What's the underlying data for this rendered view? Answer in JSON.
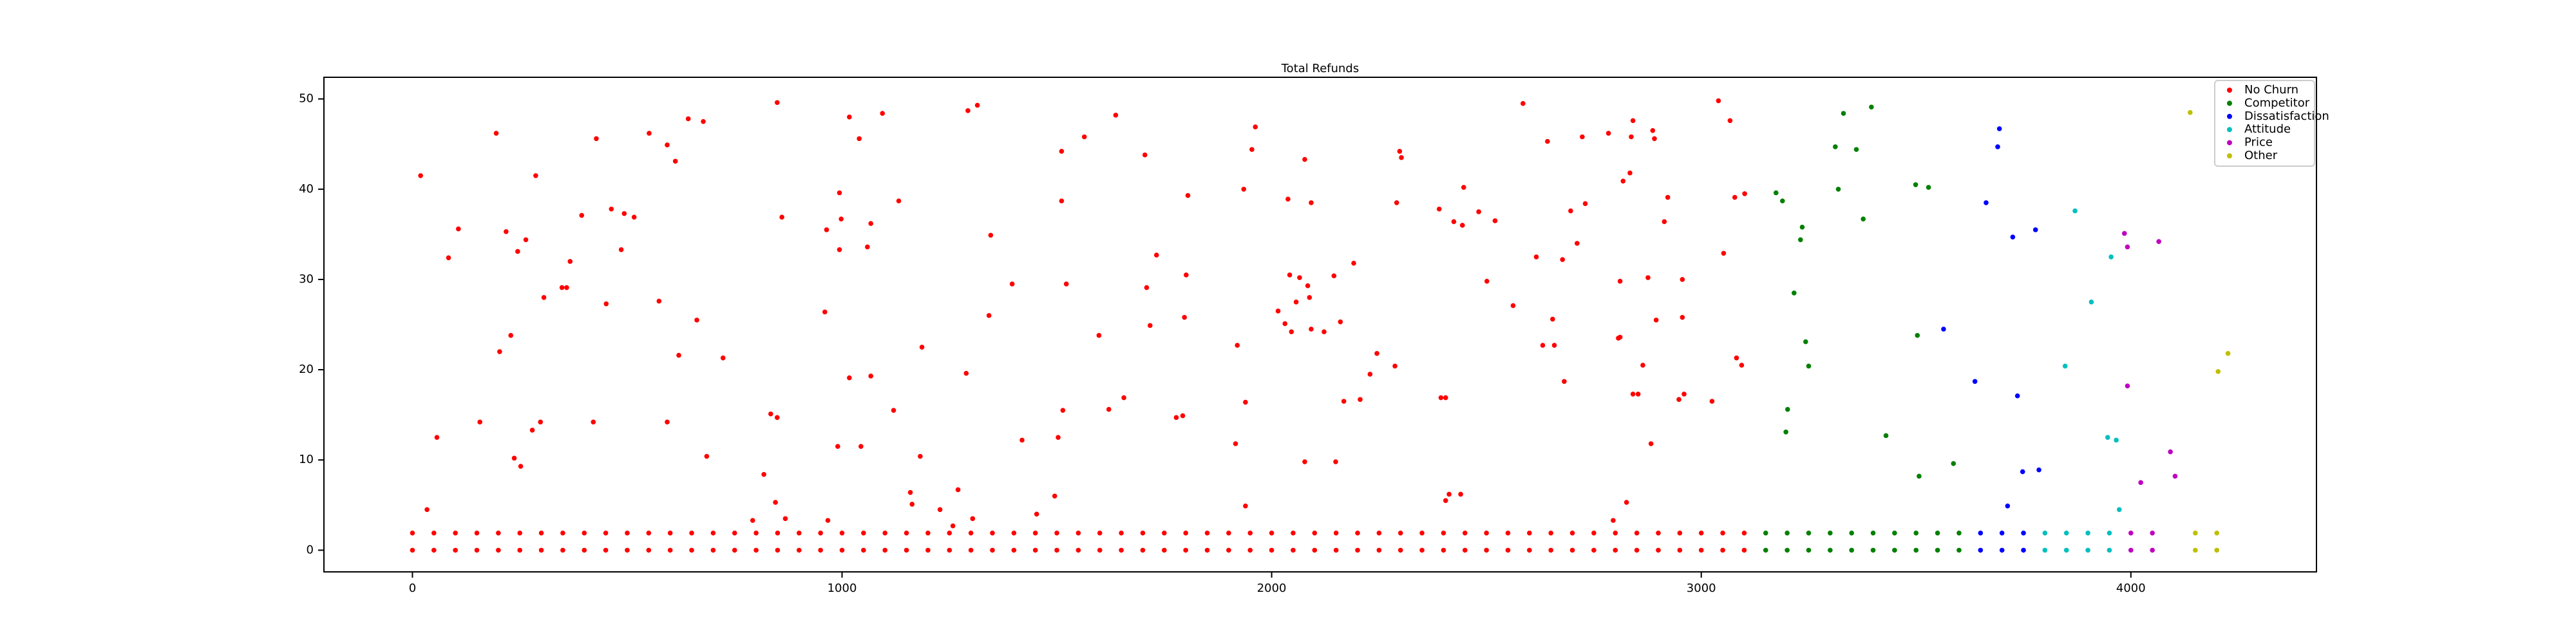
{
  "chart_data": {
    "type": "scatter",
    "title": "Total Refunds",
    "xlim": [
      -206,
      4432
    ],
    "ylim": [
      -2.4,
      52.4
    ],
    "xticks": [
      0,
      1000,
      2000,
      3000,
      4000
    ],
    "yticks": [
      0,
      10,
      20,
      30,
      40,
      50
    ],
    "grid": false,
    "legend": "upper right",
    "series": [
      {
        "name": "No Churn",
        "color": "#ff0000",
        "x": [
          19,
          34,
          57,
          84,
          107,
          157,
          195,
          203,
          218,
          229,
          237,
          245,
          252,
          264,
          279,
          287,
          298,
          306,
          348,
          359,
          367,
          394,
          421,
          428,
          451,
          463,
          486,
          493,
          516,
          551,
          574,
          593,
          593,
          612,
          620,
          642,
          662,
          677,
          685,
          723,
          792,
          818,
          834,
          845,
          849,
          849,
          860,
          868,
          960,
          964,
          967,
          990,
          994,
          994,
          998,
          1017,
          1017,
          1040,
          1044,
          1059,
          1067,
          1067,
          1094,
          1120,
          1132,
          1159,
          1163,
          1182,
          1186,
          1228,
          1258,
          1270,
          1289,
          1293,
          1304,
          1315,
          1342,
          1346,
          1396,
          1419,
          1453,
          1495,
          1503,
          1511,
          1511,
          1514,
          1522,
          1564,
          1598,
          1621,
          1637,
          1656,
          1705,
          1709,
          1717,
          1732,
          1778,
          1793,
          1797,
          1801,
          1805,
          1920,
          1916,
          1935,
          1939,
          1939,
          1954,
          1962,
          2015,
          2031,
          2038,
          2042,
          2046,
          2057,
          2065,
          2077,
          2077,
          2084,
          2088,
          2092,
          2092,
          2122,
          2145,
          2149,
          2160,
          2168,
          2191,
          2206,
          2229,
          2245,
          2287,
          2291,
          2298,
          2302,
          2390,
          2394,
          2405,
          2405,
          2413,
          2424,
          2440,
          2444,
          2447,
          2482,
          2501,
          2520,
          2562,
          2585,
          2616,
          2631,
          2642,
          2654,
          2658,
          2677,
          2681,
          2696,
          2711,
          2723,
          2730,
          2784,
          2795,
          2807,
          2811,
          2811,
          2818,
          2826,
          2834,
          2837,
          2841,
          2841,
          2853,
          2864,
          2876,
          2883,
          2887,
          2891,
          2895,
          2914,
          2922,
          2948,
          2956,
          2956,
          2960,
          3025,
          3040,
          3052,
          3067,
          3078,
          3082,
          3094,
          3101,
          0,
          50,
          100,
          150,
          200,
          250,
          300,
          350,
          400,
          450,
          500,
          550,
          600,
          650,
          700,
          750,
          800,
          850,
          900,
          950,
          1000,
          1050,
          1100,
          1150,
          1200,
          1250,
          1300,
          1350,
          1400,
          1450,
          1500,
          1550,
          1600,
          1650,
          1700,
          1750,
          1800,
          1850,
          1900,
          1950,
          2000,
          2050,
          2100,
          2150,
          2200,
          2250,
          2300,
          2350,
          2400,
          2450,
          2500,
          2550,
          2600,
          2650,
          2700,
          2750,
          2800,
          2850,
          2900,
          2950,
          3000,
          3050,
          3100,
          0,
          50,
          100,
          150,
          200,
          250,
          300,
          350,
          400,
          450,
          500,
          550,
          600,
          650,
          700,
          750,
          800,
          850,
          900,
          950,
          1000,
          1050,
          1100,
          1150,
          1200,
          1250,
          1300,
          1350,
          1400,
          1450,
          1500,
          1550,
          1600,
          1650,
          1700,
          1750,
          1800,
          1850,
          1900,
          1950,
          2000,
          2050,
          2100,
          2150,
          2200,
          2250,
          2300,
          2350,
          2400,
          2450,
          2500,
          2550,
          2600,
          2650,
          2700,
          2750,
          2800,
          2850,
          2900,
          2950,
          3000,
          3050,
          3100
        ],
        "values": [
          41.5,
          4.5,
          12.5,
          32.4,
          35.6,
          14.2,
          46.2,
          22,
          35.3,
          23.8,
          10.2,
          33.1,
          9.3,
          34.4,
          13.3,
          41.5,
          14.2,
          28,
          29.1,
          29.1,
          32,
          37.1,
          14.2,
          45.6,
          27.3,
          37.8,
          33.3,
          37.3,
          36.9,
          46.2,
          27.6,
          14.2,
          44.9,
          43.1,
          21.6,
          47.8,
          25.5,
          47.5,
          10.4,
          21.3,
          3.3,
          8.4,
          15.1,
          5.3,
          49.6,
          14.7,
          36.9,
          3.5,
          26.4,
          35.5,
          3.3,
          11.5,
          39.6,
          33.3,
          36.7,
          48,
          19.1,
          45.6,
          11.5,
          33.6,
          36.2,
          19.3,
          48.4,
          15.5,
          38.7,
          6.4,
          5.1,
          10.4,
          22.5,
          4.5,
          2.7,
          6.7,
          19.6,
          48.7,
          3.5,
          49.3,
          26,
          34.9,
          29.5,
          12.2,
          4,
          6,
          12.5,
          38.7,
          44.2,
          15.5,
          29.5,
          45.8,
          23.8,
          15.6,
          48.2,
          16.9,
          43.8,
          29.1,
          24.9,
          32.7,
          14.7,
          14.9,
          25.8,
          30.5,
          39.3,
          22.7,
          11.8,
          40,
          16.4,
          4.9,
          44.4,
          46.9,
          26.5,
          25.1,
          38.9,
          30.5,
          24.2,
          27.5,
          30.2,
          43.3,
          9.8,
          29.3,
          28,
          24.5,
          38.5,
          24.2,
          30.4,
          9.8,
          25.3,
          16.5,
          31.8,
          16.7,
          19.5,
          21.8,
          20.4,
          38.5,
          44.2,
          43.5,
          37.8,
          16.9,
          16.9,
          5.5,
          6.2,
          36.4,
          6.2,
          36,
          40.2,
          37.5,
          29.8,
          36.5,
          27.1,
          49.5,
          32.5,
          22.7,
          45.3,
          25.6,
          22.7,
          32.2,
          18.7,
          37.6,
          34,
          45.8,
          38.4,
          46.2,
          3.3,
          23.5,
          23.6,
          29.8,
          40.9,
          5.3,
          41.8,
          45.8,
          47.6,
          17.3,
          17.3,
          20.5,
          30.2,
          11.8,
          46.5,
          45.6,
          25.5,
          36.4,
          39.1,
          16.7,
          25.8,
          30,
          17.3,
          16.5,
          49.8,
          32.9,
          47.6,
          39.1,
          21.3,
          20.5,
          39.5,
          0,
          0,
          0,
          0,
          0,
          0,
          0,
          0,
          0,
          0,
          0,
          0,
          0,
          0,
          0,
          0,
          0,
          0,
          0,
          0,
          0,
          0,
          0,
          0,
          0,
          0,
          0,
          0,
          0,
          0,
          0,
          0,
          0,
          0,
          0,
          0,
          0,
          0,
          0,
          0,
          0,
          0,
          0,
          0,
          0,
          0,
          0,
          0,
          0,
          0,
          0,
          0,
          0,
          0,
          0,
          0,
          0,
          0,
          0,
          0,
          0,
          0,
          0,
          1.9,
          1.9,
          1.9,
          1.9,
          1.9,
          1.9,
          1.9,
          1.9,
          1.9,
          1.9,
          1.9,
          1.9,
          1.9,
          1.9,
          1.9,
          1.9,
          1.9,
          1.9,
          1.9,
          1.9,
          1.9,
          1.9,
          1.9,
          1.9,
          1.9,
          1.9,
          1.9,
          1.9,
          1.9,
          1.9,
          1.9,
          1.9,
          1.9,
          1.9,
          1.9,
          1.9,
          1.9,
          1.9,
          1.9,
          1.9,
          1.9,
          1.9,
          1.9,
          1.9,
          1.9,
          1.9,
          1.9,
          1.9,
          1.9,
          1.9,
          1.9,
          1.9,
          1.9,
          1.9,
          1.9,
          1.9,
          1.9,
          1.9,
          1.9,
          1.9,
          1.9,
          1.9,
          1.9
        ]
      },
      {
        "name": "Competitor",
        "color": "#008000",
        "x": [
          3174,
          3189,
          3201,
          3197,
          3216,
          3231,
          3235,
          3243,
          3250,
          3312,
          3319,
          3331,
          3361,
          3377,
          3396,
          3430,
          3499,
          3503,
          3507,
          3529,
          3587,
          3150,
          3200,
          3250,
          3300,
          3350,
          3400,
          3450,
          3500,
          3550,
          3600,
          3150,
          3200,
          3250,
          3300,
          3350,
          3400,
          3450,
          3500,
          3550,
          3600
        ],
        "values": [
          39.6,
          38.7,
          15.6,
          13.1,
          28.5,
          34.4,
          35.8,
          23.1,
          20.4,
          44.7,
          40,
          48.4,
          44.4,
          36.7,
          49.1,
          12.7,
          40.5,
          23.8,
          8.2,
          40.2,
          9.6,
          0,
          0,
          0,
          0,
          0,
          0,
          0,
          0,
          0,
          0,
          1.9,
          1.9,
          1.9,
          1.9,
          1.9,
          1.9,
          1.9,
          1.9,
          1.9,
          1.9
        ]
      },
      {
        "name": "Dissatisfaction",
        "color": "#0000ff",
        "x": [
          3564,
          3637,
          3663,
          3694,
          3690,
          3713,
          3725,
          3736,
          3748,
          3778,
          3786,
          3650,
          3700,
          3750,
          3650,
          3700,
          3750
        ],
        "values": [
          24.5,
          18.7,
          38.5,
          46.7,
          44.7,
          4.9,
          34.7,
          17.1,
          8.7,
          35.5,
          8.9,
          0,
          0,
          0,
          1.9,
          1.9,
          1.9
        ]
      },
      {
        "name": "Attitude",
        "color": "#00bfbf",
        "x": [
          3847,
          3870,
          3908,
          3954,
          3946,
          3966,
          3973,
          3800,
          3850,
          3900,
          3950,
          3800,
          3850,
          3900,
          3950
        ],
        "values": [
          20.4,
          37.6,
          27.5,
          32.5,
          12.5,
          12.2,
          4.5,
          0,
          0,
          0,
          0,
          1.9,
          1.9,
          1.9,
          1.9
        ]
      },
      {
        "name": "Price",
        "color": "#bf00bf",
        "x": [
          3985,
          3992,
          3992,
          4023,
          4065,
          4092,
          4103,
          4000,
          4050,
          4000,
          4050
        ],
        "values": [
          35.1,
          33.6,
          18.2,
          7.5,
          34.2,
          10.9,
          8.2,
          0,
          0,
          1.9,
          1.9
        ]
      },
      {
        "name": "Other",
        "color": "#bfbf00",
        "x": [
          4138,
          4203,
          4226,
          4150,
          4200,
          4150,
          4200
        ],
        "values": [
          48.5,
          19.8,
          21.8,
          0,
          0,
          1.9,
          1.9
        ]
      }
    ]
  }
}
